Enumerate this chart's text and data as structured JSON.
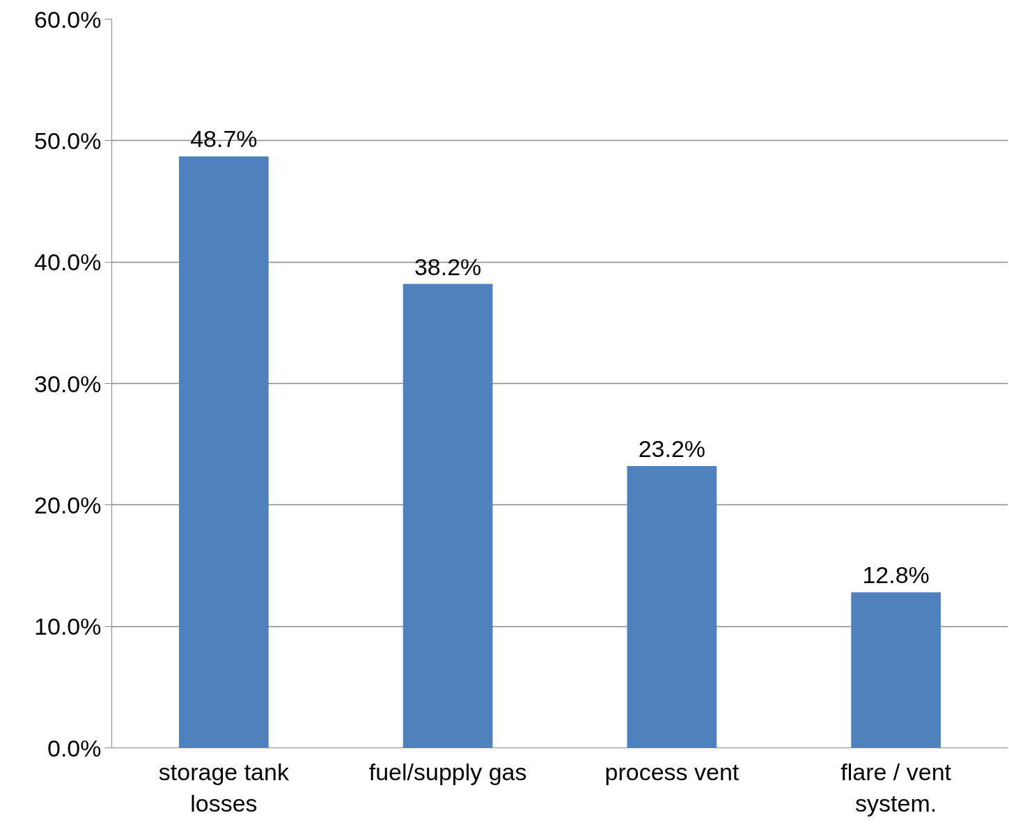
{
  "chart_data": {
    "type": "bar",
    "categories": [
      "storage tank\nlosses",
      "fuel/supply gas",
      "process vent",
      "flare / vent\nsystem."
    ],
    "values": [
      48.7,
      38.2,
      23.2,
      12.8
    ],
    "value_labels": [
      "48.7%",
      "38.2%",
      "23.2%",
      "12.8%"
    ],
    "color": "#4f81bd",
    "ylim": [
      0,
      60
    ],
    "yticks": [
      {
        "value": 0,
        "label": "0.0%"
      },
      {
        "value": 10,
        "label": "10.0%"
      },
      {
        "value": 20,
        "label": "20.0%"
      },
      {
        "value": 30,
        "label": "30.0%"
      },
      {
        "value": 40,
        "label": "40.0%"
      },
      {
        "value": 50,
        "label": "50.0%"
      },
      {
        "value": 60,
        "label": "60.0%"
      }
    ],
    "grid": "y"
  }
}
